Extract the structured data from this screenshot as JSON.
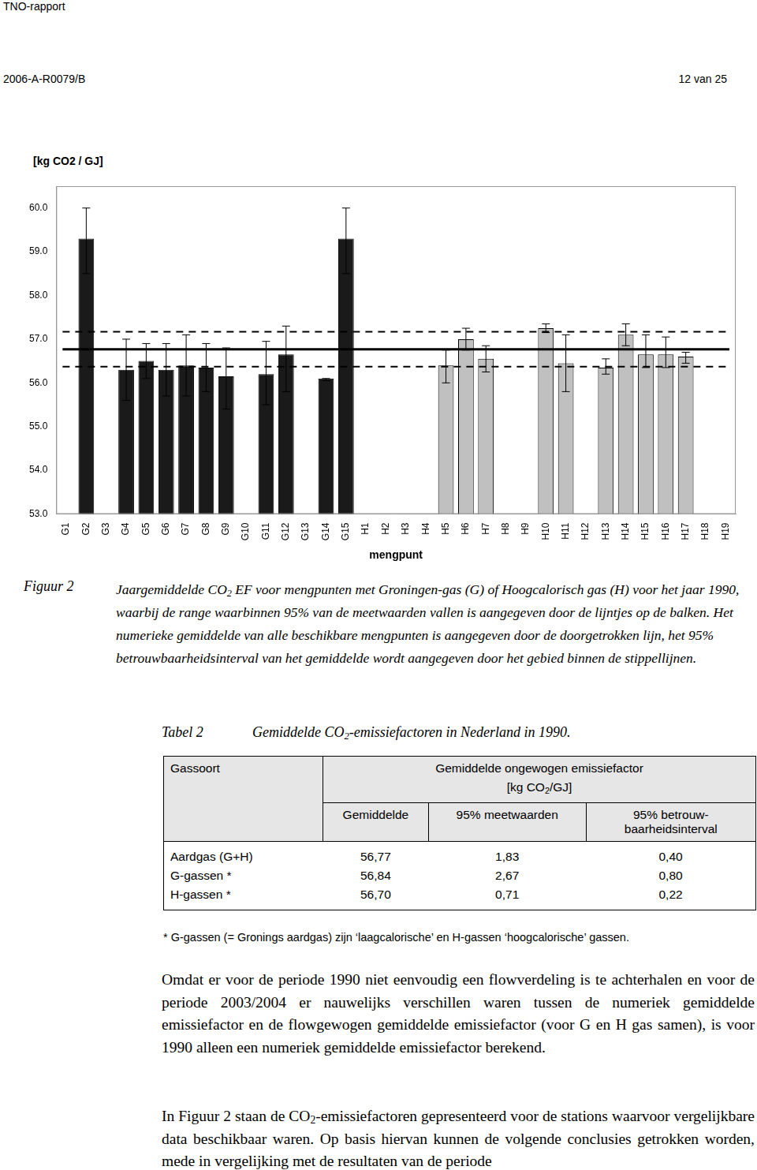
{
  "header": {
    "left": "TNO-rapport",
    "report": "2006-A-R0079/B",
    "page": "12 van 25"
  },
  "chart_data": {
    "type": "bar",
    "y_label": "[kg CO2 / GJ]",
    "x_label": "mengpunt",
    "categories": [
      "G1",
      "G2",
      "G3",
      "G4",
      "G5",
      "G6",
      "G7",
      "G8",
      "G9",
      "G10",
      "G11",
      "G12",
      "G13",
      "G14",
      "G15",
      "H1",
      "H2",
      "H3",
      "H4",
      "H5",
      "H6",
      "H7",
      "H8",
      "H9",
      "H10",
      "H11",
      "H12",
      "H13",
      "H14",
      "H15",
      "H16",
      "H17",
      "H18",
      "H19"
    ],
    "values": [
      null,
      59.3,
      null,
      56.3,
      56.5,
      56.3,
      56.4,
      56.35,
      56.15,
      null,
      56.2,
      56.65,
      null,
      56.1,
      59.3,
      null,
      null,
      null,
      null,
      56.4,
      57.0,
      56.55,
      null,
      null,
      57.25,
      56.45,
      null,
      56.35,
      57.1,
      56.65,
      56.65,
      56.6,
      null,
      null
    ],
    "colors": [
      "#1a1a1a",
      "#1a1a1a",
      "#1a1a1a",
      "#1a1a1a",
      "#1a1a1a",
      "#1a1a1a",
      "#1a1a1a",
      "#1a1a1a",
      "#1a1a1a",
      "#1a1a1a",
      "#1a1a1a",
      "#1a1a1a",
      "#1a1a1a",
      "#1a1a1a",
      "#1a1a1a",
      "#c0c0c0",
      "#c0c0c0",
      "#c0c0c0",
      "#c0c0c0",
      "#c0c0c0",
      "#c0c0c0",
      "#c0c0c0",
      "#c0c0c0",
      "#c0c0c0",
      "#c0c0c0",
      "#c0c0c0",
      "#c0c0c0",
      "#c0c0c0",
      "#c0c0c0",
      "#c0c0c0",
      "#c0c0c0",
      "#c0c0c0",
      "#c0c0c0",
      "#c0c0c0"
    ],
    "errors": [
      null,
      [
        58.5,
        60.0
      ],
      null,
      [
        55.6,
        57.0
      ],
      [
        56.1,
        56.9
      ],
      [
        55.7,
        56.9
      ],
      [
        55.7,
        57.1
      ],
      [
        55.8,
        56.9
      ],
      [
        55.4,
        56.8
      ],
      null,
      [
        55.5,
        56.95
      ],
      [
        55.8,
        57.3
      ],
      null,
      [
        56.05,
        56.1
      ],
      [
        58.5,
        60.0
      ],
      null,
      null,
      null,
      null,
      [
        56.0,
        56.75
      ],
      [
        56.75,
        57.25
      ],
      [
        56.25,
        56.85
      ],
      null,
      null,
      [
        57.15,
        57.35
      ],
      [
        55.8,
        57.1
      ],
      null,
      [
        56.2,
        56.55
      ],
      [
        56.85,
        57.35
      ],
      [
        56.35,
        57.1
      ],
      [
        56.35,
        57.05
      ],
      [
        56.45,
        56.7
      ],
      null,
      null
    ],
    "mean_line": 56.77,
    "interval_lines": [
      56.37,
      57.17
    ],
    "ylim": [
      53,
      60.5
    ],
    "yticks": [
      {
        "value": 53,
        "label": "53.0"
      },
      {
        "value": 54,
        "label": "54.0"
      },
      {
        "value": 55,
        "label": "55.0"
      },
      {
        "value": 56,
        "label": "56.0"
      },
      {
        "value": 57,
        "label": "57.0"
      },
      {
        "value": 58,
        "label": "58.0"
      },
      {
        "value": 59,
        "label": "59.0"
      },
      {
        "value": 60,
        "label": "60.0"
      }
    ],
    "grid": false
  },
  "figure": {
    "label": "Figuur 2",
    "caption": "Jaargemiddelde CO2 EF voor mengpunten met Groningen-gas (G) of Hoogcalorisch gas (H) voor het jaar 1990, waarbij de range waarbinnen 95% van de meetwaarden vallen is aangegeven door de lijntjes op de balken. Het numerieke gemiddelde van alle beschikbare mengpunten is aangegeven door de doorgetrokken lijn, het 95% betrouwbaarheidsinterval van het gemiddelde wordt aangegeven door het gebied binnen de stippellijnen."
  },
  "table": {
    "label": "Tabel 2",
    "title": "Gemiddelde CO2-emissiefactoren in Nederland in 1990.",
    "header": [
      "Gassoort",
      "Gemiddelde ongewogen emissiefactor",
      "[kg CO2/GJ]"
    ],
    "subheader": [
      "Gemiddelde",
      "95% meetwaarden",
      "95% betrouw-baarheidsinterval"
    ],
    "rows": [
      [
        "Aardgas (G+H)",
        "56,77",
        "1,83",
        "0,40"
      ],
      [
        "G-gassen *",
        "56,84",
        "2,67",
        "0,80"
      ],
      [
        "H-gassen *",
        "56,70",
        "0,71",
        "0,22"
      ]
    ],
    "footnote": "*   G-gassen (= Gronings aardgas) zijn ‘laagcalorische’ en H-gassen ‘hoogcalorische’ gassen."
  },
  "paragraphs": [
    "Omdat er voor de periode 1990 niet eenvoudig een flowverdeling is te achterhalen en voor de periode 2003/2004 er nauwelijks verschillen waren tussen de numeriek gemiddelde emissiefactor en de flowgewogen gemiddelde emissiefactor (voor G en H gas samen), is voor 1990 alleen een numeriek gemiddelde emissiefactor berekend.",
    "In Figuur 2 staan de CO2-emissiefactoren gepresenteerd voor de stations waarvoor vergelijkbare data beschikbaar waren. Op basis hiervan kunnen de volgende conclusies getrokken worden, mede in vergelijking met de resultaten van de periode"
  ]
}
